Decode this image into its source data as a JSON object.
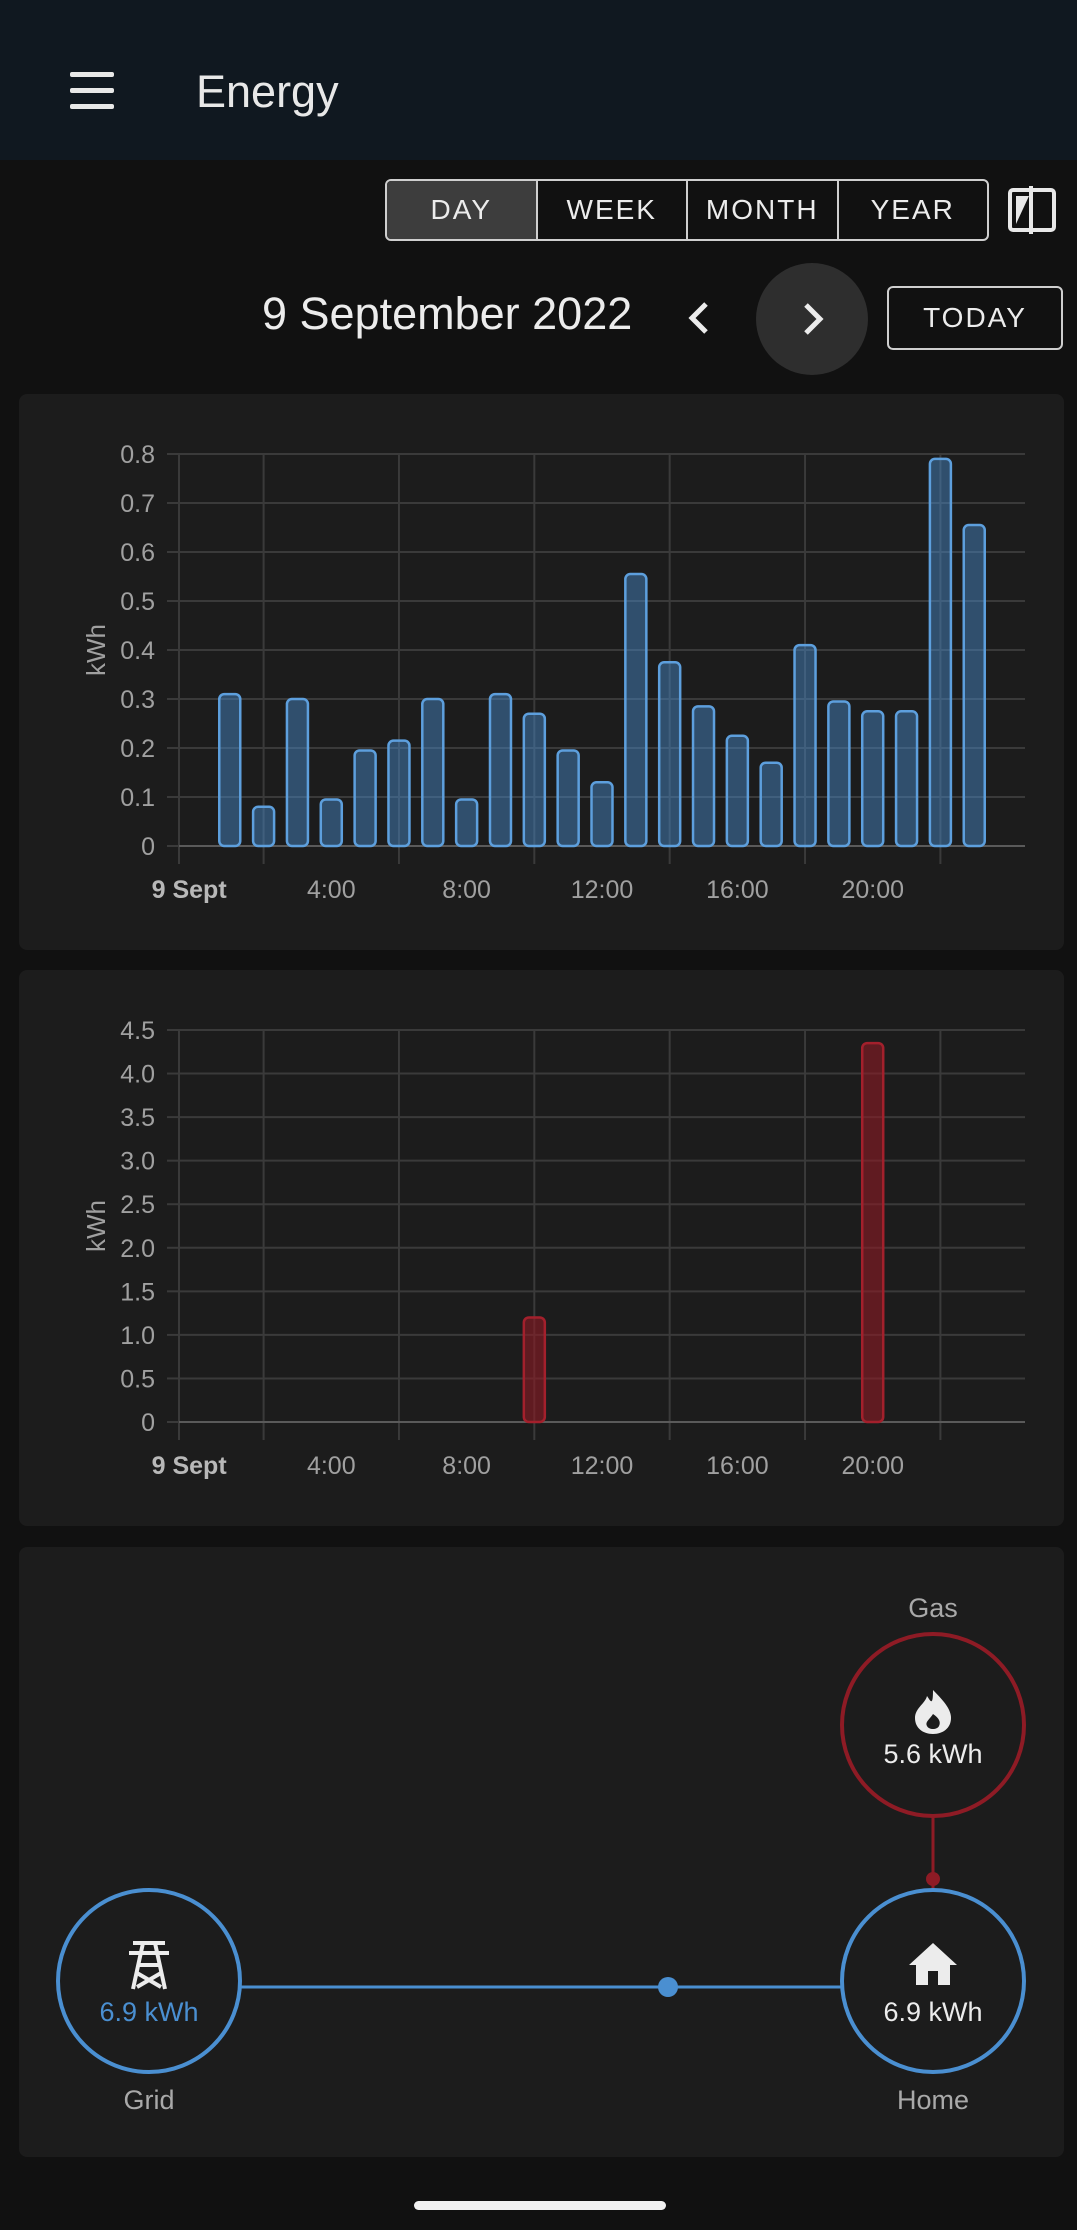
{
  "appbar": {
    "title": "Energy",
    "menu_icon": "menu-icon"
  },
  "period_selector": {
    "options": [
      {
        "label": "DAY",
        "active": true
      },
      {
        "label": "WEEK",
        "active": false
      },
      {
        "label": "MONTH",
        "active": false
      },
      {
        "label": "YEAR",
        "active": false
      }
    ],
    "compare_icon": "compare-icon"
  },
  "date_nav": {
    "date_label": "9 September 2022",
    "prev_icon": "chevron-left-icon",
    "next_icon": "chevron-right-icon",
    "today_label": "TODAY"
  },
  "colors": {
    "grid_blue": "#4a8fd1",
    "gas_red": "#8e1b25",
    "card_bg": "#1c1c1c",
    "page_bg": "#111111"
  },
  "chart_data": [
    {
      "type": "bar",
      "ylabel": "kWh",
      "ylim": [
        0,
        0.8
      ],
      "yticks": [
        "0",
        "0.1",
        "0.2",
        "0.3",
        "0.4",
        "0.5",
        "0.6",
        "0.7",
        "0.8"
      ],
      "xticks": [
        "9 Sept",
        "4:00",
        "8:00",
        "12:00",
        "16:00",
        "20:00"
      ],
      "x_hours": [
        0,
        1,
        2,
        3,
        4,
        5,
        6,
        7,
        8,
        9,
        10,
        11,
        12,
        13,
        14,
        15,
        16,
        17,
        18,
        19,
        20,
        21,
        22,
        23
      ],
      "values": [
        0,
        0.31,
        0.08,
        0.3,
        0.095,
        0.195,
        0.215,
        0.3,
        0.095,
        0.31,
        0.27,
        0.195,
        0.13,
        0.555,
        0.375,
        0.285,
        0.225,
        0.17,
        0.41,
        0.295,
        0.275,
        0.275,
        0.79,
        0.655
      ],
      "color": "#4a8fd1"
    },
    {
      "type": "bar",
      "ylabel": "kWh",
      "ylim": [
        0,
        4.5
      ],
      "yticks": [
        "0",
        "0.5",
        "1.0",
        "1.5",
        "2.0",
        "2.5",
        "3.0",
        "3.5",
        "4.0",
        "4.5"
      ],
      "xticks": [
        "9 Sept",
        "4:00",
        "8:00",
        "12:00",
        "16:00",
        "20:00"
      ],
      "x_hours": [
        0,
        1,
        2,
        3,
        4,
        5,
        6,
        7,
        8,
        9,
        10,
        11,
        12,
        13,
        14,
        15,
        16,
        17,
        18,
        19,
        20,
        21,
        22,
        23
      ],
      "values": [
        0,
        0,
        0,
        0,
        0,
        0,
        0,
        0,
        0,
        0,
        1.2,
        0,
        0,
        0,
        0,
        0,
        0,
        0,
        0,
        0,
        4.35,
        0,
        0,
        0
      ],
      "color": "#8e1b25"
    }
  ],
  "energy_flow": {
    "gas": {
      "label": "Gas",
      "value": "5.6 kWh",
      "icon": "fire-icon"
    },
    "grid": {
      "label": "Grid",
      "value": "6.9 kWh",
      "icon": "transmission-tower-icon"
    },
    "home": {
      "label": "Home",
      "value": "6.9 kWh",
      "icon": "home-icon"
    }
  }
}
